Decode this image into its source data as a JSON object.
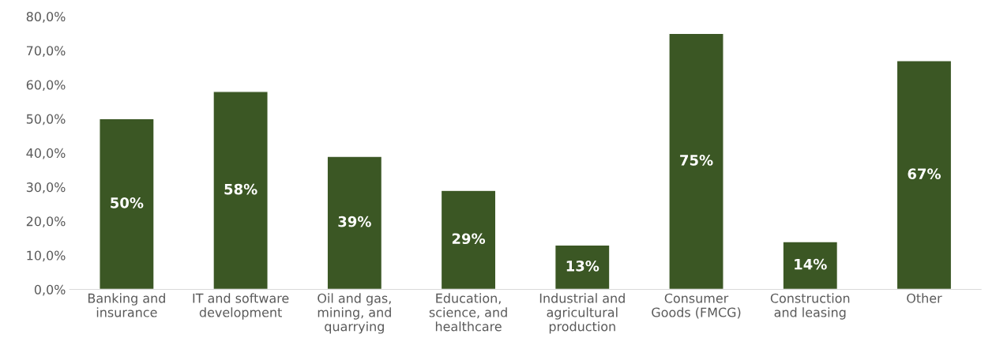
{
  "chart_data": {
    "type": "bar",
    "categories": [
      "Banking and\ninsurance",
      "IT and software\ndevelopment",
      "Oil and gas,\nmining, and\nquarrying",
      "Education,\nscience, and\nhealthcare",
      "Industrial and\nagricultural\nproduction",
      "Consumer\nGoods (FMCG)",
      "Construction\nand leasing",
      "Other"
    ],
    "values": [
      50,
      58,
      39,
      29,
      13,
      75,
      14,
      67
    ],
    "value_labels": [
      "50%",
      "58%",
      "39%",
      "29%",
      "13%",
      "75%",
      "14%",
      "67%"
    ],
    "color": "#3b5724",
    "ylim": [
      0,
      80
    ],
    "yticks": [
      {
        "value": 0,
        "label": "0,0%"
      },
      {
        "value": 10,
        "label": "10,0%"
      },
      {
        "value": 20,
        "label": "20,0%"
      },
      {
        "value": 30,
        "label": "30,0%"
      },
      {
        "value": 40,
        "label": "40,0%"
      },
      {
        "value": 50,
        "label": "50,0%"
      },
      {
        "value": 60,
        "label": "60,0%"
      },
      {
        "value": 70,
        "label": "70,0%"
      },
      {
        "value": 80,
        "label": "80,0%"
      }
    ],
    "grid": false,
    "legend": false
  }
}
